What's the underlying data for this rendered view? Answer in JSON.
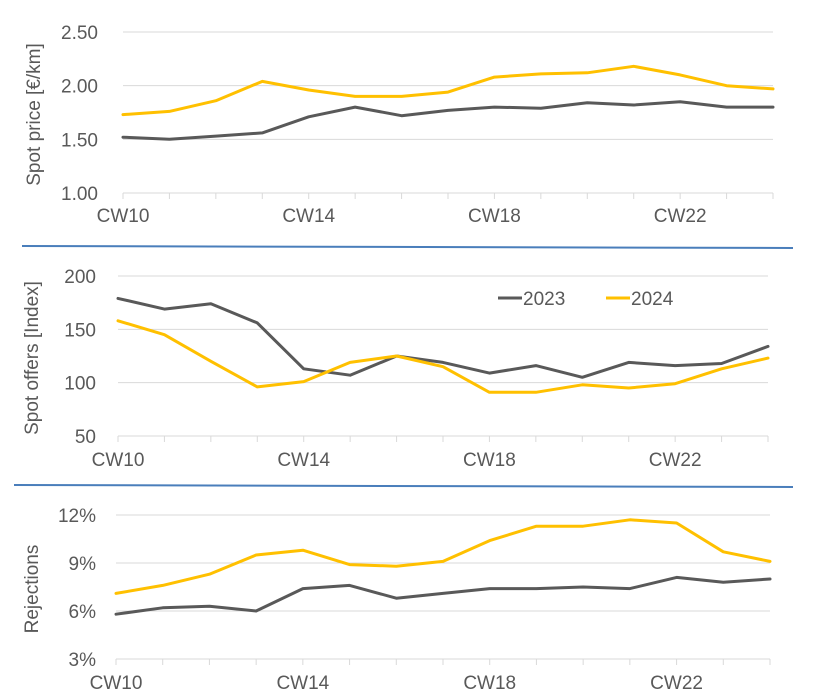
{
  "colors": {
    "series_2023": "#595959",
    "series_2024": "#ffc000",
    "separator": "#4a7ebb"
  },
  "chart_data": [
    {
      "type": "line",
      "title": "",
      "xlabel": "",
      "ylabel": "Spot price [€/km]",
      "x": [
        "CW10",
        "CW11",
        "CW12",
        "CW13",
        "CW14",
        "CW15",
        "CW16",
        "CW17",
        "CW18",
        "CW19",
        "CW20",
        "CW21",
        "CW22",
        "CW23",
        "CW24"
      ],
      "x_tick_labels": [
        "CW10",
        "CW14",
        "CW18",
        "CW22"
      ],
      "ylim": [
        1.0,
        2.5
      ],
      "y_ticks": [
        "1.00",
        "1.50",
        "2.00",
        "2.50"
      ],
      "y_tick_values": [
        1.0,
        1.5,
        2.0,
        2.5
      ],
      "legend": false,
      "series": [
        {
          "name": "2023",
          "values": [
            1.52,
            1.5,
            1.53,
            1.56,
            1.71,
            1.8,
            1.72,
            1.77,
            1.8,
            1.79,
            1.84,
            1.82,
            1.85,
            1.8,
            1.8
          ]
        },
        {
          "name": "2024",
          "values": [
            1.73,
            1.76,
            1.86,
            2.04,
            1.96,
            1.9,
            1.9,
            1.94,
            2.08,
            2.11,
            2.12,
            2.18,
            2.1,
            2.0,
            1.97
          ]
        }
      ]
    },
    {
      "type": "line",
      "title": "",
      "xlabel": "",
      "ylabel": "Spot offers [Index]",
      "x": [
        "CW10",
        "CW11",
        "CW12",
        "CW13",
        "CW14",
        "CW15",
        "CW16",
        "CW17",
        "CW18",
        "CW19",
        "CW20",
        "CW21",
        "CW22",
        "CW23",
        "CW24"
      ],
      "x_tick_labels": [
        "CW10",
        "CW14",
        "CW18",
        "CW22"
      ],
      "ylim": [
        50,
        200
      ],
      "y_ticks": [
        "50",
        "100",
        "150",
        "200"
      ],
      "y_tick_values": [
        50,
        100,
        150,
        200
      ],
      "legend": true,
      "legend_position": "top-right",
      "series": [
        {
          "name": "2023",
          "values": [
            179,
            169,
            174,
            156,
            113,
            107,
            125,
            119,
            109,
            116,
            105,
            119,
            116,
            118,
            134
          ]
        },
        {
          "name": "2024",
          "values": [
            158,
            145,
            120,
            96,
            101,
            119,
            125,
            115,
            91,
            91,
            98,
            95,
            99,
            113,
            123
          ]
        }
      ]
    },
    {
      "type": "line",
      "title": "",
      "xlabel": "",
      "ylabel": "Rejections",
      "x": [
        "CW10",
        "CW11",
        "CW12",
        "CW13",
        "CW14",
        "CW15",
        "CW16",
        "CW17",
        "CW18",
        "CW19",
        "CW20",
        "CW21",
        "CW22",
        "CW23",
        "CW24"
      ],
      "x_tick_labels": [
        "CW10",
        "CW14",
        "CW18",
        "CW22"
      ],
      "ylim": [
        3,
        12
      ],
      "y_ticks": [
        "3%",
        "6%",
        "9%",
        "12%"
      ],
      "y_tick_values": [
        3,
        6,
        9,
        12
      ],
      "legend": false,
      "series": [
        {
          "name": "2023",
          "values": [
            5.8,
            6.2,
            6.3,
            6.0,
            7.4,
            7.6,
            6.8,
            7.1,
            7.4,
            7.4,
            7.5,
            7.4,
            8.1,
            7.8,
            8.0
          ]
        },
        {
          "name": "2024",
          "values": [
            7.1,
            7.6,
            8.3,
            9.5,
            9.8,
            8.9,
            8.8,
            9.1,
            10.4,
            11.3,
            11.3,
            11.7,
            11.5,
            9.7,
            9.1
          ]
        }
      ]
    }
  ]
}
